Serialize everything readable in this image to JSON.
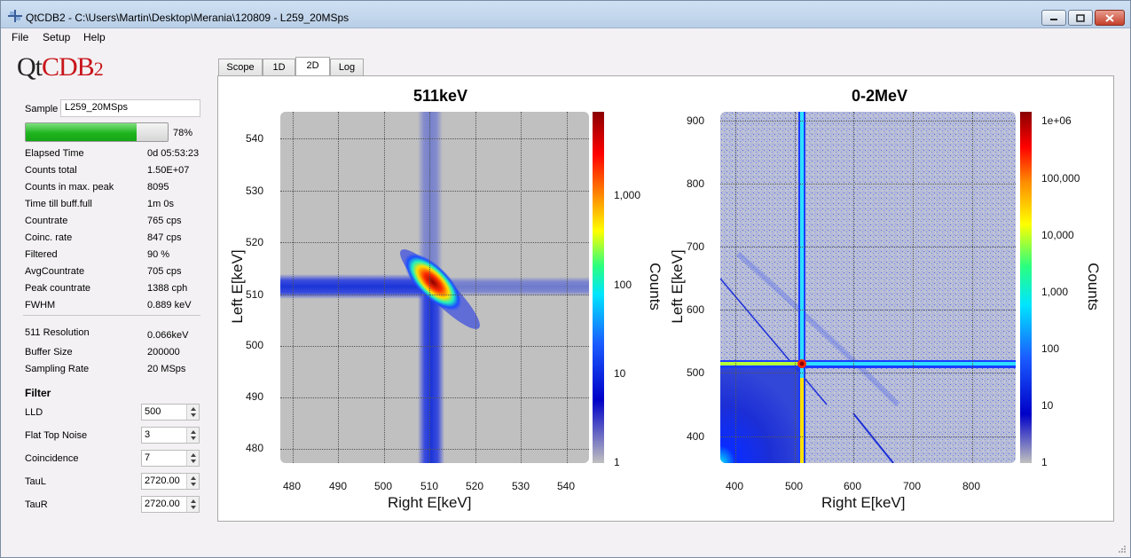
{
  "window": {
    "title": "QtCDB2 - C:\\Users\\Martin\\Desktop\\Merania\\120809 - L259_20MSps"
  },
  "menu": [
    "File",
    "Setup",
    "Help"
  ],
  "logo": {
    "q": "Qt",
    "cdb": "CDB",
    "two": "2"
  },
  "sample": {
    "label": "Sample",
    "value": "L259_20MSps"
  },
  "progress": {
    "fraction": 0.78,
    "text": "78%"
  },
  "stats": [
    {
      "label": "Elapsed Time",
      "value": "0d 05:53:23"
    },
    {
      "label": "Counts total",
      "value": "1.50E+07"
    },
    {
      "label": "Counts in max. peak",
      "value": "8095"
    },
    {
      "label": "Time till buff.full",
      "value": "1m 0s"
    },
    {
      "label": "Countrate",
      "value": "765 cps"
    },
    {
      "label": "Coinc. rate",
      "value": "847 cps"
    },
    {
      "label": "Filtered",
      "value": "90 %"
    },
    {
      "label": "AvgCountrate",
      "value": "705 cps"
    },
    {
      "label": "Peak countrate",
      "value": "1388 cph"
    },
    {
      "label": "FWHM",
      "value": "0.889 keV"
    }
  ],
  "stats2": [
    {
      "label": "511 Resolution",
      "value": "0.066keV"
    },
    {
      "label": "Buffer Size",
      "value": "200000"
    },
    {
      "label": "Sampling Rate",
      "value": "20 MSps"
    }
  ],
  "filter": {
    "title": "Filter",
    "fields": [
      {
        "label": "LLD",
        "value": "500"
      },
      {
        "label": "Flat Top Noise",
        "value": "3"
      },
      {
        "label": "Coincidence",
        "value": "7"
      },
      {
        "label": "TauL",
        "value": "2720.00"
      },
      {
        "label": "TauR",
        "value": "2720.00"
      }
    ]
  },
  "tabs": [
    {
      "label": "Scope",
      "active": false
    },
    {
      "label": "1D",
      "active": false
    },
    {
      "label": "2D",
      "active": true
    },
    {
      "label": "Log",
      "active": false
    }
  ],
  "plots": {
    "left": {
      "title": "511keV",
      "xlabel": "Right E[keV]",
      "ylabel": "Left E[keV]",
      "xticks": [
        "480",
        "490",
        "500",
        "510",
        "520",
        "530",
        "540"
      ],
      "yticks": [
        "540",
        "530",
        "520",
        "510",
        "500",
        "490",
        "480"
      ],
      "colorbar_label": "Counts",
      "colorbar_ticks": [
        "1,000",
        "100",
        "10",
        "1"
      ]
    },
    "right": {
      "title": "0-2MeV",
      "xlabel": "Right E[keV]",
      "ylabel": "Left E[keV]",
      "xticks": [
        "400",
        "500",
        "600",
        "700",
        "800"
      ],
      "yticks": [
        "900",
        "800",
        "700",
        "600",
        "500",
        "400"
      ],
      "colorbar_label": "Counts",
      "colorbar_ticks": [
        "1e+06",
        "100,000",
        "10,000",
        "1,000",
        "100",
        "10",
        "1"
      ]
    }
  },
  "chart_data": [
    {
      "type": "heatmap",
      "title": "511keV",
      "xlabel": "Right E[keV]",
      "ylabel": "Left E[keV]",
      "xlim": [
        477,
        545
      ],
      "ylim": [
        477,
        545
      ],
      "colorbar": {
        "label": "Counts",
        "scale": "log",
        "range": [
          1,
          5000
        ]
      },
      "features": {
        "peak": [
          511,
          511
        ],
        "lines": [
          "x=511",
          "y=511"
        ]
      },
      "grid": true
    },
    {
      "type": "heatmap",
      "title": "0-2MeV",
      "xlabel": "Right E[keV]",
      "ylabel": "Left E[keV]",
      "xlim": [
        380,
        875
      ],
      "ylim": [
        360,
        910
      ],
      "colorbar": {
        "label": "Counts",
        "scale": "log",
        "range": [
          1,
          1000000
        ]
      },
      "features": {
        "peak": [
          511,
          511
        ],
        "lines": [
          "x=511",
          "y=511"
        ]
      },
      "grid": true
    }
  ],
  "colors": {
    "accent_green": "#1fb51f",
    "logo_red": "#c8151b",
    "plot_background": "#c0c0c0"
  }
}
